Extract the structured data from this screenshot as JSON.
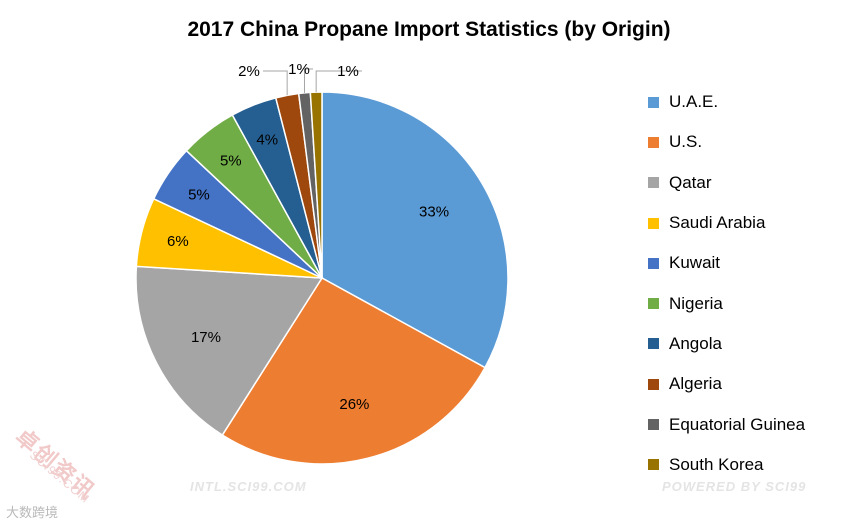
{
  "chart_data": {
    "type": "pie",
    "title": "2017 China Propane Import Statistics (by Origin)",
    "categories": [
      "U.A.E.",
      "U.S.",
      "Qatar",
      "Saudi Arabia",
      "Kuwait",
      "Nigeria",
      "Angola",
      "Algeria",
      "Equatorial Guinea",
      "South Korea"
    ],
    "values": [
      33,
      26,
      17,
      6,
      5,
      5,
      4,
      2,
      1,
      1
    ],
    "labels": [
      "33%",
      "26%",
      "17%",
      "6%",
      "5%",
      "5%",
      "4%",
      "2%",
      "1%",
      "1%"
    ],
    "colors": [
      "#5b9bd5",
      "#ed7d31",
      "#a5a5a5",
      "#ffc000",
      "#4472c4",
      "#70ad47",
      "#255e91",
      "#9e480e",
      "#636363",
      "#997300"
    ],
    "legend_position": "right"
  },
  "watermarks": {
    "left": "INTL.SCI99.COM",
    "right": "POWERED BY SCI99",
    "stamp": "卓创资讯",
    "stamp_sub": "SCI99.COM",
    "corner": "大数跨境"
  }
}
